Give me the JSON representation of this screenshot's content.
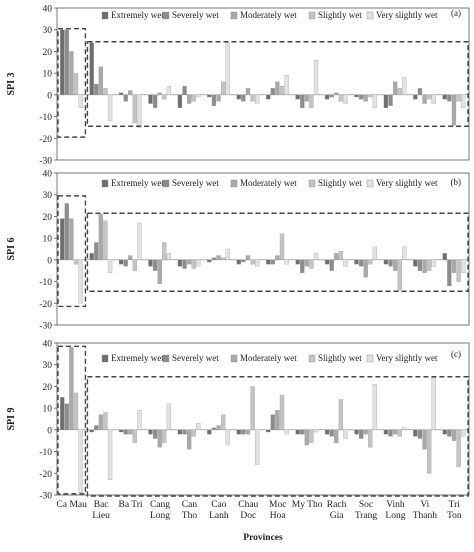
{
  "legend_labels": [
    "Extremely wet",
    "Severely wet",
    "Moderately wet",
    "Slightly wet",
    "Very slightly wet"
  ],
  "series_colors": [
    "#6e6e6e",
    "#8c8c8c",
    "#a9a9a9",
    "#c4c4c4",
    "#e2e2e2"
  ],
  "provinces_text": "Provinces",
  "chart_data": [
    {
      "type": "bar",
      "panel_label": "(a)",
      "ylabel": "SPI 3",
      "ylim": [
        -30,
        40
      ],
      "yticks": [
        40,
        30,
        20,
        10,
        0,
        -10,
        -20,
        -30
      ],
      "categories": [
        "Ca Mau",
        "Bac Lieu",
        "Ba Tri",
        "Cang Long",
        "Can Tho",
        "Cao Lanh",
        "Chau Doc",
        "Moc Hoa",
        "My Tho",
        "Rach Gia",
        "Soc Trang",
        "Vinh Long",
        "Vi Thanh",
        "Tri Ton"
      ],
      "series": [
        {
          "name": "Extremely wet",
          "values": [
            30,
            24,
            1,
            -4,
            -6,
            -1,
            -2,
            -2,
            -2,
            -2,
            -1,
            -6,
            -2,
            -2
          ]
        },
        {
          "name": "Severely wet",
          "values": [
            30,
            5,
            -3,
            -6,
            4,
            -5,
            -3,
            3,
            -6,
            -1,
            -2,
            -5,
            3,
            -3
          ]
        },
        {
          "name": "Moderately wet",
          "values": [
            20,
            13,
            2,
            1,
            -4,
            -3,
            3,
            6,
            -3,
            1,
            -3,
            6,
            -4,
            -14
          ]
        },
        {
          "name": "Slightly wet",
          "values": [
            10,
            3,
            -13,
            -2,
            -3,
            6,
            -3,
            4,
            -6,
            -3,
            -1,
            3,
            -2,
            -3
          ]
        },
        {
          "name": "Very slightly wet",
          "values": [
            -6,
            -12,
            -15,
            4,
            -1,
            24,
            -4,
            9,
            16,
            -4,
            -6,
            8,
            -4,
            -6
          ]
        }
      ]
    },
    {
      "type": "bar",
      "panel_label": "(b)",
      "ylabel": "SPI 6",
      "ylim": [
        -30,
        40
      ],
      "yticks": [
        40,
        30,
        20,
        10,
        0,
        -10,
        -20,
        -30
      ],
      "categories": [
        "Ca Mau",
        "Bac Lieu",
        "Ba Tri",
        "Cang Long",
        "Can Tho",
        "Cao Lanh",
        "Chau Doc",
        "Moc Hoa",
        "My Tho",
        "Rach Gia",
        "Soc Trang",
        "Vinh Long",
        "Vi Thanh",
        "Tri Ton"
      ],
      "series": [
        {
          "name": "Extremely wet",
          "values": [
            19,
            3,
            -2,
            -3,
            -3,
            -1,
            -2,
            -2,
            -2,
            -2,
            -2,
            -2,
            -3,
            3
          ]
        },
        {
          "name": "Severely wet",
          "values": [
            26,
            8,
            -3,
            -5,
            -4,
            1,
            -1,
            -2,
            -6,
            -5,
            -3,
            -3,
            -5,
            -12
          ]
        },
        {
          "name": "Moderately wet",
          "values": [
            19,
            21,
            2,
            -11,
            -2,
            2,
            2,
            2,
            -3,
            3,
            -8,
            -5,
            -6,
            -6
          ]
        },
        {
          "name": "Slightly wet",
          "values": [
            -2,
            18,
            -5,
            8,
            -4,
            1,
            -2,
            12,
            -4,
            4,
            -2,
            -14,
            -5,
            -10
          ]
        },
        {
          "name": "Very slightly wet",
          "values": [
            -20,
            -6,
            17,
            3,
            -3,
            5,
            -3,
            -2,
            3,
            -3,
            6,
            6,
            -3,
            -6
          ]
        }
      ]
    },
    {
      "type": "bar",
      "panel_label": "(c)",
      "ylabel": "SPI 9",
      "ylim": [
        -30,
        40
      ],
      "yticks": [
        40,
        30,
        20,
        10,
        0,
        -10,
        -20,
        -30
      ],
      "categories": [
        "Ca Mau",
        "Bac Lieu",
        "Ba Tri",
        "Cang Long",
        "Can Tho",
        "Cao Lanh",
        "Chau Doc",
        "Moc Hoa",
        "My Tho",
        "Rach Gia",
        "Soc Trang",
        "Vinh Long",
        "Vi Thanh",
        "Tri Ton"
      ],
      "series": [
        {
          "name": "Extremely wet",
          "values": [
            15,
            -1,
            -1,
            -2,
            -2,
            -2,
            -2,
            -1,
            -2,
            -2,
            -2,
            -2,
            -3,
            -2
          ]
        },
        {
          "name": "Severely wet",
          "values": [
            12,
            2,
            -2,
            -4,
            -2,
            1,
            -2,
            7,
            -2,
            -3,
            -4,
            -3,
            -4,
            -3
          ]
        },
        {
          "name": "Moderately wet",
          "values": [
            38,
            7,
            -2,
            -8,
            -9,
            2,
            -2,
            9,
            -7,
            -6,
            -2,
            -2,
            -9,
            -5
          ]
        },
        {
          "name": "Slightly wet",
          "values": [
            17,
            8,
            -6,
            -6,
            -3,
            7,
            20,
            16,
            -6,
            14,
            -8,
            -3,
            -20,
            -17
          ]
        },
        {
          "name": "Very slightly wet",
          "values": [
            -29,
            -23,
            9,
            12,
            3,
            -7,
            -16,
            -2,
            -1,
            -4,
            21,
            1,
            24,
            -3
          ]
        }
      ]
    }
  ]
}
